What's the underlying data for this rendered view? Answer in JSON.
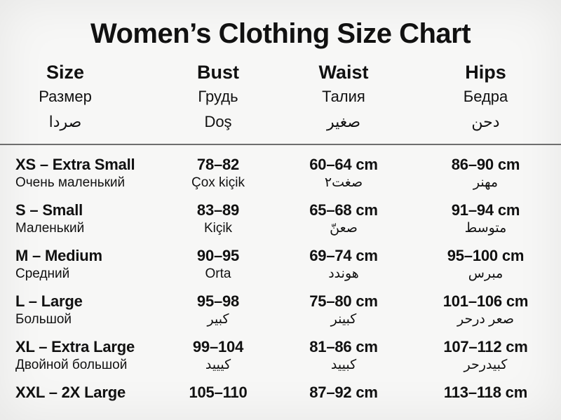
{
  "page": {
    "title": "Women’s Clothing Size Chart"
  },
  "table": {
    "columns": [
      {
        "en": "Size",
        "ru": "Размер",
        "l3": "صردا"
      },
      {
        "en": "Bust",
        "ru": "Грудь",
        "l3": "Doş"
      },
      {
        "en": "Waist",
        "ru": "Талия",
        "l3": "صغير"
      },
      {
        "en": "Hips",
        "ru": "Бедра",
        "l3": "دحن"
      }
    ],
    "rows": [
      {
        "size": "XS – Extra Small",
        "size_sub": "Очень маленький",
        "bust": "78–82",
        "bust_sub": "Çox kiçik",
        "waist": "60–64 cm",
        "waist_sub": "صغت٢",
        "hips": "86–90 cm",
        "hips_sub": "مهنر"
      },
      {
        "size": "S – Small",
        "size_sub": "Маленький",
        "bust": "83–89",
        "bust_sub": "Kiçik",
        "waist": "65–68 cm",
        "waist_sub": "صعنّ",
        "hips": "91–94 cm",
        "hips_sub": "متوسط"
      },
      {
        "size": "M – Medium",
        "size_sub": "Средний",
        "bust": "90–95",
        "bust_sub": "Orta",
        "waist": "69–74 cm",
        "waist_sub": "هوندد",
        "hips": "95–100 cm",
        "hips_sub": "مبرس"
      },
      {
        "size": "L – Large",
        "size_sub": "Большой",
        "bust": "95–98",
        "bust_sub": "كبير",
        "waist": "75–80 cm",
        "waist_sub": "كبينر",
        "hips": "101–106 cm",
        "hips_sub": "صعر درحر"
      },
      {
        "size": "XL – Extra Large",
        "size_sub": "Двойной большой",
        "bust": "99–104",
        "bust_sub": "كيييد",
        "waist": "81–86 cm",
        "waist_sub": "كبييد",
        "hips": "107–112 cm",
        "hips_sub": "كبيدرحر"
      },
      {
        "size": "XXL – 2X Large",
        "size_sub": "",
        "bust": "105–110",
        "bust_sub": "",
        "waist": "87–92 cm",
        "waist_sub": "",
        "hips": "113–118 cm",
        "hips_sub": ""
      }
    ]
  }
}
